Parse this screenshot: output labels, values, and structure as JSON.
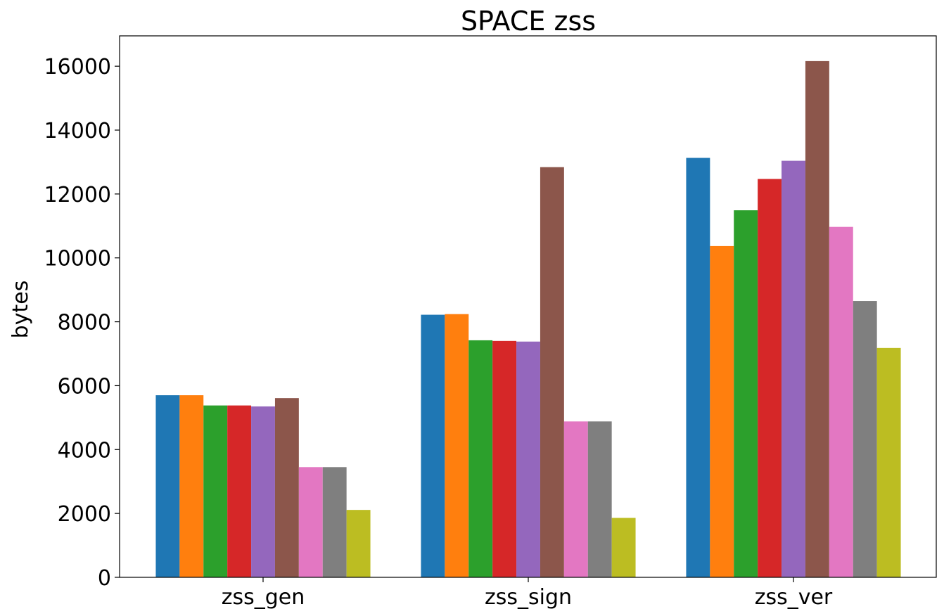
{
  "chart_data": {
    "type": "bar",
    "title": "SPACE zss",
    "xlabel": "",
    "ylabel": "bytes",
    "categories": [
      "zss_gen",
      "zss_sign",
      "zss_ver"
    ],
    "ylim": [
      0,
      16950
    ],
    "yticks": [
      0,
      2000,
      4000,
      6000,
      8000,
      10000,
      12000,
      14000,
      16000
    ],
    "legend": "none",
    "grid": false,
    "series": [
      {
        "color": "#1f77b4",
        "values": [
          5700,
          8220,
          13130
        ]
      },
      {
        "color": "#ff7f0e",
        "values": [
          5700,
          8240,
          10370
        ]
      },
      {
        "color": "#2ca02c",
        "values": [
          5380,
          7420,
          11490
        ]
      },
      {
        "color": "#d62728",
        "values": [
          5380,
          7400,
          12470
        ]
      },
      {
        "color": "#9467bd",
        "values": [
          5350,
          7380,
          13040
        ]
      },
      {
        "color": "#8c564b",
        "values": [
          5610,
          12840,
          16160
        ]
      },
      {
        "color": "#e377c2",
        "values": [
          3450,
          4880,
          10970
        ]
      },
      {
        "color": "#7f7f7f",
        "values": [
          3450,
          4880,
          8650
        ]
      },
      {
        "color": "#bcbd22",
        "values": [
          2110,
          1860,
          7180
        ]
      }
    ]
  }
}
